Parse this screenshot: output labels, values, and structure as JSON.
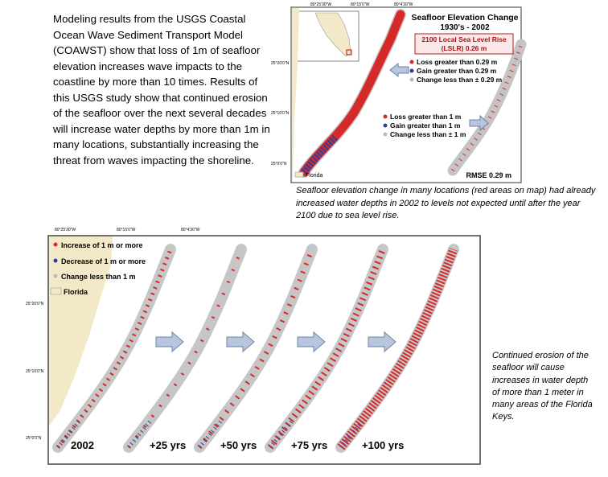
{
  "intro": "Modeling results from the USGS Coastal Ocean Wave Sediment Transport Model (COAWST) show that loss of 1m of seafloor elevation increases wave impacts to the coastline by more than 10 times. Results of this USGS study show that continued erosion of the seafloor over the next several decades will increase water depths by more than 1m in many locations, substantially increasing the threat from waves impacting the shoreline.",
  "top_map": {
    "title": "Seafloor Elevation Change",
    "subtitle": "1930's - 2002",
    "slr_box": [
      "2100 Local Sea Level Rise",
      "(LSLR) 0.26 m"
    ],
    "legend_a": [
      "Loss greater than 0.29 m",
      "Gain greater than 0.29 m",
      "Change less than ± 0.29 m"
    ],
    "legend_b": [
      "Loss greater than 1 m",
      "Gain greater than 1 m",
      "Change less than ± 1 m"
    ],
    "florida": "Florida",
    "rmse": "RMSE 0.29 m",
    "lon_labels": [
      "80°25'30\"W",
      "80°15'0\"W",
      "80°4'30\"W"
    ],
    "lat_labels": [
      "25°20'0\"N",
      "25°10'0\"N",
      "25°0'0\"N"
    ]
  },
  "caption_top": "Seafloor elevation change in many locations (red areas on map) had already increased water depths in 2002 to levels not expected until after the year 2100 due to sea level rise.",
  "bottom_map": {
    "legend": [
      "Increase of 1 m or more",
      "Decrease of 1 m or more",
      "Change less than 1 m",
      "Florida"
    ],
    "panels": [
      "2002",
      "+25 yrs",
      "+50 yrs",
      "+75 yrs",
      "+100 yrs"
    ],
    "lon_labels": [
      "80°25'30\"W",
      "80°15'0\"W",
      "80°4'30\"W"
    ],
    "lat_labels": [
      "25°20'0\"N",
      "25°10'0\"N",
      "25°0'0\"N"
    ]
  },
  "caption_right": "Continued erosion of the seafloor will cause increases in water depth of more than 1 meter in many areas of the Florida Keys."
}
